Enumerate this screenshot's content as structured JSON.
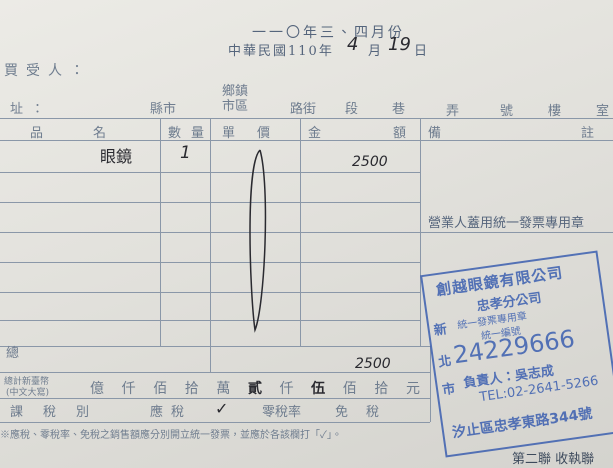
{
  "header": {
    "period": "一一〇年三、四月份",
    "date_prefix": "中華民國110年",
    "month": "4",
    "month_unit": "月",
    "day": "19",
    "day_unit": "日"
  },
  "buyer_label": "買受人：",
  "address": {
    "label": "址：",
    "fields": [
      "縣市",
      "鄉鎮市區",
      "路街",
      "段",
      "巷",
      "弄",
      "號",
      "樓",
      "室"
    ]
  },
  "table": {
    "headers": [
      "品名",
      "數量",
      "單價",
      "金額",
      "備註"
    ],
    "rows": [
      {
        "item": "眼鏡",
        "quantity": "1",
        "amount": "2500"
      }
    ]
  },
  "seal_note": "營業人蓋用統一發票專用章",
  "total": {
    "label": "總",
    "amount": "2500"
  },
  "chinese_total": {
    "label": "總計新臺幣",
    "sublabel": "(中文大寫)",
    "parts": [
      {
        "text": "億",
        "handwritten": false
      },
      {
        "text": "仟",
        "handwritten": false
      },
      {
        "text": "佰",
        "handwritten": false
      },
      {
        "text": "拾",
        "handwritten": false
      },
      {
        "text": "萬",
        "handwritten": false
      },
      {
        "text": "貳",
        "handwritten": true
      },
      {
        "text": "仟",
        "handwritten": false
      },
      {
        "text": "伍",
        "handwritten": true
      },
      {
        "text": "佰",
        "handwritten": false
      },
      {
        "text": "拾",
        "handwritten": false
      },
      {
        "text": "元",
        "handwritten": false
      }
    ]
  },
  "tax": {
    "label": "課稅別",
    "taxable": "應稅",
    "check": "✓",
    "zero_rate": "零稅率",
    "exempt": "免稅"
  },
  "footnote": "※應稅、零稅率、免稅之銷售額應分別開立統一發票，並應於各該欄打「✓」。",
  "stamp": {
    "company": "創越眼鏡有限公司",
    "branch": "忠孝分公司",
    "side": [
      "新",
      "北",
      "市"
    ],
    "seal_text": "統一發票專用章",
    "id_label": "統一編號",
    "id": "24229666",
    "owner": "負責人：吳志成",
    "tel": "TEL:02-2641-5266",
    "address": "汐止區忠孝東路344號"
  },
  "copy_label": "第二聯 收執聯"
}
